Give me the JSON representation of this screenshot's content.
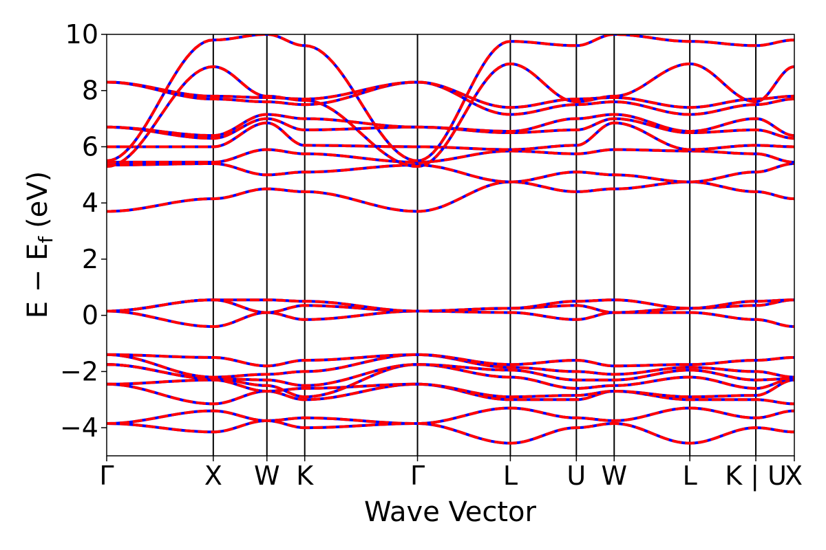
{
  "chart_data": {
    "type": "line",
    "xlabel": "Wave Vector",
    "ylabel": "E − E",
    "ylabel_subscript": "f",
    "ylabel_unit": "(eV)",
    "ylim": [
      -5,
      10
    ],
    "yticks": [
      -4,
      -2,
      0,
      2,
      4,
      6,
      8,
      10
    ],
    "ytick_labels": [
      "−4",
      "−2",
      "0",
      "2",
      "4",
      "6",
      "8",
      "10"
    ],
    "xlim": [
      0,
      1
    ],
    "kpoints": [
      {
        "label": "Γ",
        "x": 0.0
      },
      {
        "label": "X",
        "x": 0.155
      },
      {
        "label": "W",
        "x": 0.233
      },
      {
        "label": "K",
        "x": 0.288
      },
      {
        "label": "Γ",
        "x": 0.452
      },
      {
        "label": "L",
        "x": 0.587
      },
      {
        "label": "U",
        "x": 0.683
      },
      {
        "label": "W",
        "x": 0.738
      },
      {
        "label": "L",
        "x": 0.848
      },
      {
        "label": "K | U",
        "x": 0.944
      },
      {
        "label": "X",
        "x": 1.0
      }
    ],
    "grid": false,
    "line_colors": [
      "#0000ff",
      "#ff0000"
    ],
    "series": [
      {
        "values": [
          -3.85,
          -4.15,
          -3.75,
          -3.65,
          -3.85,
          -4.55,
          -4.0,
          -3.85,
          -4.55,
          -4.0,
          -4.15
        ]
      },
      {
        "values": [
          -3.85,
          -3.4,
          -3.75,
          -4.0,
          -3.85,
          -3.3,
          -3.65,
          -3.75,
          -3.3,
          -3.65,
          -3.4
        ]
      },
      {
        "values": [
          -2.45,
          -3.15,
          -2.7,
          -3.0,
          -2.45,
          -3.0,
          -3.0,
          -2.7,
          -3.0,
          -3.0,
          -3.15
        ]
      },
      {
        "values": [
          -2.45,
          -2.3,
          -2.7,
          -2.6,
          -2.45,
          -2.9,
          -2.85,
          -2.7,
          -2.9,
          -2.85,
          -2.3
        ]
      },
      {
        "values": [
          -1.75,
          -2.25,
          -2.5,
          -2.9,
          -1.75,
          -2.2,
          -2.6,
          -2.5,
          -2.2,
          -2.6,
          -2.25
        ]
      },
      {
        "values": [
          -1.75,
          -2.25,
          -2.3,
          -2.5,
          -1.75,
          -1.95,
          -2.3,
          -2.3,
          -1.95,
          -2.3,
          -2.25
        ]
      },
      {
        "values": [
          -1.4,
          -2.2,
          -2.1,
          -2.0,
          -1.4,
          -1.85,
          -2.0,
          -2.1,
          -1.85,
          -2.0,
          -2.2
        ]
      },
      {
        "values": [
          -1.4,
          -1.5,
          -1.8,
          -1.6,
          -1.4,
          -1.75,
          -1.6,
          -1.8,
          -1.75,
          -1.6,
          -1.5
        ]
      },
      {
        "values": [
          0.15,
          -0.4,
          0.1,
          -0.15,
          0.15,
          0.1,
          -0.15,
          0.1,
          0.1,
          -0.15,
          -0.4
        ]
      },
      {
        "values": [
          0.15,
          0.55,
          0.1,
          0.35,
          0.15,
          0.25,
          0.35,
          0.1,
          0.25,
          0.35,
          0.55
        ]
      },
      {
        "values": [
          0.15,
          0.55,
          0.55,
          0.5,
          0.15,
          0.25,
          0.5,
          0.55,
          0.25,
          0.5,
          0.55
        ]
      },
      {
        "values": [
          3.7,
          4.15,
          4.5,
          4.4,
          3.7,
          4.75,
          4.4,
          4.5,
          4.75,
          4.4,
          4.15
        ]
      },
      {
        "values": [
          5.35,
          5.4,
          5.0,
          5.1,
          5.35,
          4.75,
          5.1,
          5.0,
          4.75,
          5.1,
          5.4
        ]
      },
      {
        "values": [
          5.45,
          5.45,
          5.9,
          5.75,
          5.45,
          5.85,
          5.75,
          5.9,
          5.85,
          5.75,
          5.45
        ]
      },
      {
        "values": [
          6.0,
          6.0,
          6.85,
          6.05,
          6.0,
          5.9,
          6.05,
          6.85,
          5.9,
          6.05,
          6.0
        ]
      },
      {
        "values": [
          6.7,
          6.3,
          7.0,
          6.6,
          6.7,
          6.5,
          6.6,
          7.0,
          6.5,
          6.6,
          6.3
        ]
      },
      {
        "values": [
          6.7,
          6.4,
          7.15,
          7.0,
          6.7,
          6.55,
          7.0,
          7.15,
          6.55,
          7.0,
          6.4
        ]
      },
      {
        "values": [
          8.3,
          7.7,
          7.6,
          7.5,
          8.3,
          7.15,
          7.5,
          7.6,
          7.15,
          7.5,
          7.7
        ]
      },
      {
        "values": [
          8.3,
          7.8,
          7.75,
          7.7,
          8.3,
          7.4,
          7.7,
          7.75,
          7.4,
          7.7,
          7.8
        ]
      },
      {
        "values": [
          5.3,
          8.85,
          7.8,
          7.65,
          5.3,
          8.95,
          7.6,
          7.8,
          8.95,
          7.6,
          8.85
        ]
      },
      {
        "values": [
          5.5,
          9.8,
          10.0,
          9.6,
          5.5,
          9.75,
          9.6,
          10.0,
          9.75,
          9.6,
          9.8
        ]
      }
    ]
  }
}
